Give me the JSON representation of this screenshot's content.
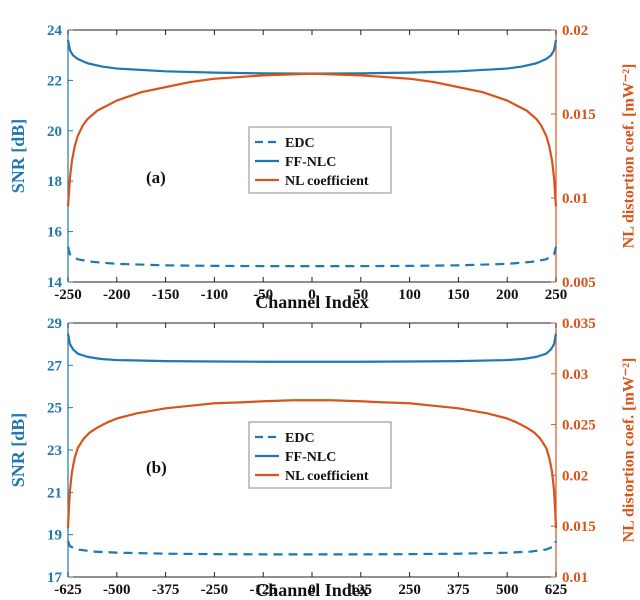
{
  "colors": {
    "blue": "#1f77b4",
    "orange": "#d9541a",
    "axis": "#222222",
    "legend_border": "#888888"
  },
  "chart_data": [
    {
      "panel": "(a)",
      "type": "line",
      "xlabel": "Channel Index",
      "ylabel_left": "SNR [dB]",
      "ylabel_right": "NL distortion coef. [mW⁻²]",
      "xlim": [
        -250,
        250
      ],
      "ylim_left": [
        14,
        24
      ],
      "ylim_right": [
        0.005,
        0.02
      ],
      "x_ticks": [
        "-250",
        "-200",
        "-150",
        "-100",
        "-50",
        "0",
        "50",
        "100",
        "150",
        "200",
        "250"
      ],
      "x_tick_values": [
        -250,
        -200,
        -150,
        -100,
        -50,
        0,
        50,
        100,
        150,
        200,
        250
      ],
      "y_left_ticks": [
        "14",
        "16",
        "18",
        "20",
        "22",
        "24"
      ],
      "y_left_tick_values": [
        14,
        16,
        18,
        20,
        22,
        24
      ],
      "y_right_ticks": [
        "0.005",
        "0.01",
        "0.015",
        "0.02"
      ],
      "y_right_tick_values": [
        0.005,
        0.01,
        0.015,
        0.02
      ],
      "legend": [
        "EDC",
        "FF-NLC",
        "NL coefficient"
      ],
      "legend_position": "center",
      "series": [
        {
          "name": "EDC",
          "axis": "left",
          "style": "dashed",
          "color": "#1f77b4",
          "x": [
            -250,
            -248,
            -240,
            -225,
            -200,
            -150,
            -100,
            -50,
            0,
            50,
            100,
            150,
            200,
            225,
            240,
            248,
            250
          ],
          "y": [
            15.4,
            15.1,
            14.9,
            14.8,
            14.72,
            14.66,
            14.64,
            14.63,
            14.63,
            14.63,
            14.64,
            14.66,
            14.72,
            14.8,
            14.9,
            15.1,
            15.4
          ]
        },
        {
          "name": "FF-NLC",
          "axis": "left",
          "style": "solid",
          "color": "#1f77b4",
          "x": [
            -250,
            -248,
            -245,
            -240,
            -230,
            -215,
            -200,
            -150,
            -100,
            -50,
            0,
            50,
            100,
            150,
            200,
            215,
            230,
            240,
            245,
            248,
            250
          ],
          "y": [
            23.6,
            23.2,
            23.0,
            22.85,
            22.68,
            22.55,
            22.47,
            22.36,
            22.31,
            22.28,
            22.27,
            22.28,
            22.31,
            22.36,
            22.47,
            22.55,
            22.68,
            22.85,
            23.0,
            23.2,
            23.6
          ]
        },
        {
          "name": "NL coefficient",
          "axis": "right",
          "style": "solid",
          "color": "#d9541a",
          "x": [
            -250,
            -249,
            -248,
            -246,
            -243,
            -240,
            -235,
            -230,
            -220,
            -210,
            -200,
            -175,
            -150,
            -125,
            -100,
            -75,
            -50,
            -25,
            0,
            25,
            50,
            75,
            100,
            125,
            150,
            175,
            200,
            210,
            220,
            230,
            235,
            240,
            243,
            246,
            248,
            249,
            250
          ],
          "y": [
            0.0095,
            0.0103,
            0.0112,
            0.0122,
            0.0131,
            0.0137,
            0.0143,
            0.0147,
            0.0152,
            0.0155,
            0.0158,
            0.0163,
            0.0166,
            0.0169,
            0.0171,
            0.0172,
            0.0173,
            0.01735,
            0.0174,
            0.01735,
            0.0173,
            0.0172,
            0.0171,
            0.0169,
            0.0166,
            0.0163,
            0.0158,
            0.0155,
            0.0152,
            0.0147,
            0.0143,
            0.0137,
            0.0131,
            0.0122,
            0.0112,
            0.0103,
            0.0095
          ]
        }
      ]
    },
    {
      "panel": "(b)",
      "type": "line",
      "xlabel": "Channel Index",
      "ylabel_left": "SNR [dB]",
      "ylabel_right": "NL distortion coef. [mW⁻²]",
      "xlim": [
        -625,
        625
      ],
      "ylim_left": [
        17,
        29
      ],
      "ylim_right": [
        0.01,
        0.035
      ],
      "x_ticks": [
        "-625",
        "-500",
        "-375",
        "-250",
        "-125",
        "0",
        "125",
        "250",
        "375",
        "500",
        "625"
      ],
      "x_tick_values": [
        -625,
        -500,
        -375,
        -250,
        -125,
        0,
        125,
        250,
        375,
        500,
        625
      ],
      "y_left_ticks": [
        "17",
        "19",
        "21",
        "23",
        "25",
        "27",
        "29"
      ],
      "y_left_tick_values": [
        17,
        19,
        21,
        23,
        25,
        27,
        29
      ],
      "y_right_ticks": [
        "0.01",
        "0.015",
        "0.02",
        "0.025",
        "0.03",
        "0.035"
      ],
      "y_right_tick_values": [
        0.01,
        0.015,
        0.02,
        0.025,
        0.03,
        0.035
      ],
      "legend": [
        "EDC",
        "FF-NLC",
        "NL coefficient"
      ],
      "legend_position": "center",
      "series": [
        {
          "name": "EDC",
          "axis": "left",
          "style": "dashed",
          "color": "#1f77b4",
          "x": [
            -625,
            -620,
            -600,
            -560,
            -500,
            -375,
            -250,
            -125,
            0,
            125,
            250,
            375,
            500,
            560,
            600,
            620,
            625
          ],
          "y": [
            18.7,
            18.45,
            18.3,
            18.2,
            18.15,
            18.1,
            18.08,
            18.07,
            18.07,
            18.07,
            18.08,
            18.1,
            18.15,
            18.2,
            18.3,
            18.45,
            18.7
          ]
        },
        {
          "name": "FF-NLC",
          "axis": "left",
          "style": "solid",
          "color": "#1f77b4",
          "x": [
            -625,
            -620,
            -612,
            -600,
            -575,
            -540,
            -500,
            -375,
            -250,
            -125,
            0,
            125,
            250,
            375,
            500,
            540,
            575,
            600,
            612,
            620,
            625
          ],
          "y": [
            28.5,
            28.0,
            27.75,
            27.55,
            27.4,
            27.3,
            27.25,
            27.2,
            27.18,
            27.17,
            27.17,
            27.17,
            27.18,
            27.2,
            27.25,
            27.3,
            27.4,
            27.55,
            27.75,
            28.0,
            28.5
          ]
        },
        {
          "name": "NL coefficient",
          "axis": "right",
          "style": "solid",
          "color": "#d9541a",
          "x": [
            -625,
            -623,
            -620,
            -615,
            -608,
            -600,
            -585,
            -570,
            -550,
            -525,
            -500,
            -450,
            -375,
            -300,
            -250,
            -175,
            -125,
            -50,
            0,
            50,
            125,
            175,
            250,
            300,
            375,
            450,
            500,
            525,
            550,
            570,
            585,
            600,
            608,
            615,
            620,
            623,
            625
          ],
          "y": [
            0.0148,
            0.0165,
            0.0185,
            0.0203,
            0.0217,
            0.0227,
            0.0236,
            0.0242,
            0.0247,
            0.0252,
            0.0256,
            0.0261,
            0.0266,
            0.0269,
            0.0271,
            0.0272,
            0.0273,
            0.0274,
            0.0274,
            0.0274,
            0.0273,
            0.0272,
            0.0271,
            0.0269,
            0.0266,
            0.0261,
            0.0256,
            0.0252,
            0.0247,
            0.0242,
            0.0236,
            0.0227,
            0.0217,
            0.0203,
            0.0185,
            0.0165,
            0.0148
          ]
        }
      ]
    }
  ]
}
